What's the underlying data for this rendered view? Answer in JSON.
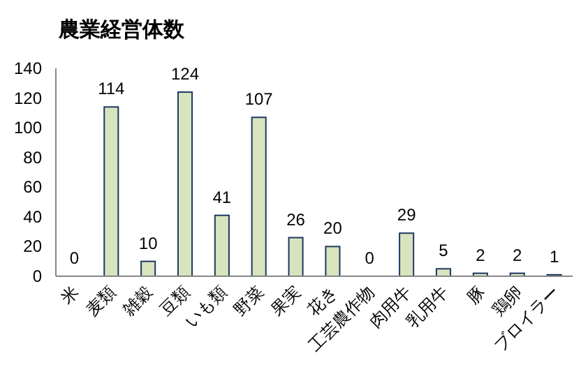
{
  "chart_data": {
    "type": "bar",
    "title": "農業経営体数",
    "categories": [
      "米",
      "麦類",
      "雑穀",
      "豆類",
      "いも類",
      "野菜",
      "果実",
      "花き",
      "工芸農作物",
      "肉用牛",
      "乳用牛",
      "豚",
      "鶏卵",
      "ブロイラー"
    ],
    "values": [
      0,
      114,
      10,
      124,
      41,
      107,
      26,
      20,
      0,
      29,
      5,
      2,
      2,
      1
    ],
    "color": "#d7e4bd",
    "ylim": [
      0,
      140
    ],
    "yticks": [
      0,
      20,
      40,
      60,
      80,
      100,
      120,
      140
    ],
    "data_labels": true,
    "grid": false
  }
}
